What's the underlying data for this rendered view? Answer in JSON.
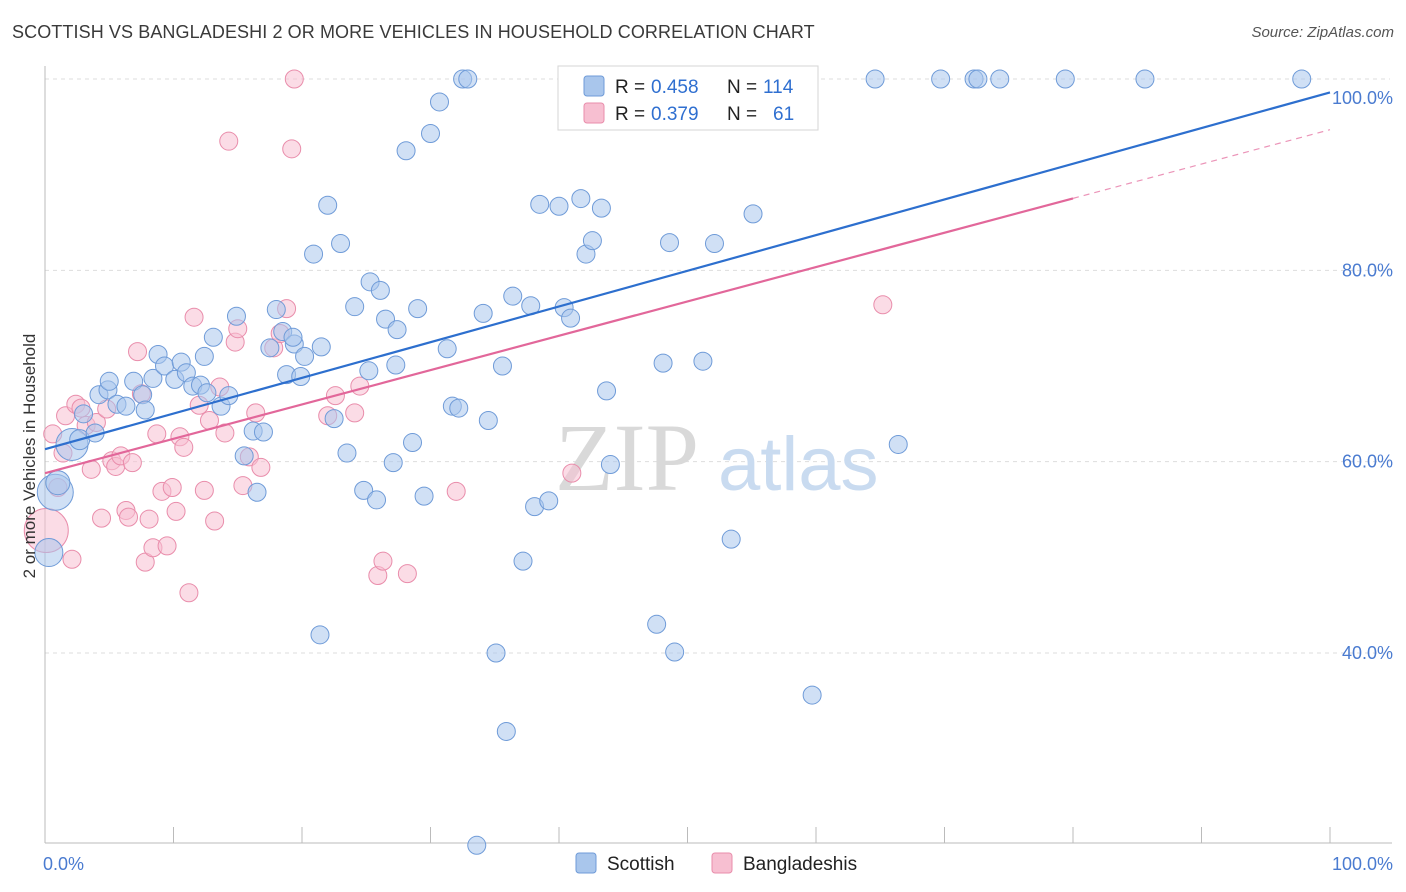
{
  "header": {
    "title": "SCOTTISH VS BANGLADESHI 2 OR MORE VEHICLES IN HOUSEHOLD CORRELATION CHART",
    "source": "Source: ZipAtlas.com"
  },
  "watermark": {
    "part1": "ZIP",
    "part2": "atlas"
  },
  "colors": {
    "scottish_fill": "#a9c6ec",
    "scottish_stroke": "#6f9bd8",
    "scottish_line": "#2d6fce",
    "bangladeshi_fill": "#f7bfd1",
    "bangladeshi_stroke": "#e98dab",
    "bangladeshi_line": "#e2679a",
    "tick_text": "#4a7bd0",
    "grid": "#dddddd"
  },
  "legend": {
    "rows": [
      {
        "r_label": "R =",
        "r_value": "0.458",
        "n_label": "N =",
        "n_value": "114"
      },
      {
        "r_label": "R =",
        "r_value": "0.379",
        "n_label": "N =",
        "n_value": "61"
      }
    ]
  },
  "bottom_legend": {
    "items": [
      "Scottish",
      "Bangladeshis"
    ]
  },
  "chart_data": {
    "type": "scatter",
    "title": "SCOTTISH VS BANGLADESHI 2 OR MORE VEHICLES IN HOUSEHOLD CORRELATION CHART",
    "xlabel": "",
    "ylabel": "2 or more Vehicles in Household",
    "xlim": [
      0,
      100
    ],
    "ylim": [
      18,
      102
    ],
    "x_tick_labels": [
      "0.0%",
      "100.0%"
    ],
    "y_ticks": [
      40,
      60,
      80,
      100
    ],
    "y_tick_labels": [
      "40.0%",
      "60.0%",
      "80.0%",
      "100.0%"
    ],
    "grid": true,
    "legend_position": "top-center",
    "series": [
      {
        "name": "Scottish",
        "r": 0.458,
        "n": 114,
        "trend": {
          "x": [
            0,
            100
          ],
          "y": [
            61.3,
            98.6
          ]
        },
        "points": [
          [
            0.3,
            50.5,
            14
          ],
          [
            0.8,
            56.8,
            18
          ],
          [
            1.0,
            57.8,
            12
          ],
          [
            2.1,
            61.8,
            16
          ],
          [
            2.7,
            62.3,
            10
          ],
          [
            3.0,
            65.0,
            9
          ],
          [
            3.9,
            63.0,
            9
          ],
          [
            4.2,
            67.0,
            9
          ],
          [
            4.9,
            67.5,
            9
          ],
          [
            5.0,
            68.4,
            9
          ],
          [
            5.6,
            66.0,
            9
          ],
          [
            6.3,
            65.8,
            9
          ],
          [
            6.9,
            68.4,
            9
          ],
          [
            7.6,
            67.0,
            9
          ],
          [
            7.8,
            65.4,
            9
          ],
          [
            8.4,
            68.7,
            9
          ],
          [
            8.8,
            71.2,
            9
          ],
          [
            9.3,
            70.0,
            9
          ],
          [
            10.1,
            68.6,
            9
          ],
          [
            10.6,
            70.4,
            9
          ],
          [
            11.0,
            69.3,
            9
          ],
          [
            11.5,
            67.9,
            9
          ],
          [
            12.1,
            68.0,
            9
          ],
          [
            12.4,
            71.0,
            9
          ],
          [
            12.6,
            67.2,
            9
          ],
          [
            13.1,
            73.0,
            9
          ],
          [
            13.7,
            65.8,
            9
          ],
          [
            14.3,
            66.9,
            9
          ],
          [
            14.9,
            75.2,
            9
          ],
          [
            15.5,
            60.6,
            9
          ],
          [
            16.2,
            63.2,
            9
          ],
          [
            16.5,
            56.8,
            9
          ],
          [
            17.0,
            63.1,
            9
          ],
          [
            17.5,
            71.9,
            9
          ],
          [
            18.0,
            75.9,
            9
          ],
          [
            18.5,
            73.6,
            9
          ],
          [
            18.8,
            69.1,
            9
          ],
          [
            19.4,
            72.3,
            9
          ],
          [
            19.9,
            68.9,
            9
          ],
          [
            20.2,
            71.0,
            9
          ],
          [
            20.9,
            81.7,
            9
          ],
          [
            21.5,
            72.0,
            9
          ],
          [
            22.0,
            86.8,
            9
          ],
          [
            22.5,
            64.5,
            9
          ],
          [
            23.0,
            82.8,
            9
          ],
          [
            23.5,
            60.9,
            9
          ],
          [
            24.1,
            76.2,
            9
          ],
          [
            24.8,
            57.0,
            9
          ],
          [
            25.3,
            78.8,
            9
          ],
          [
            25.8,
            56.0,
            9
          ],
          [
            26.1,
            77.9,
            9
          ],
          [
            26.5,
            74.9,
            9
          ],
          [
            27.1,
            59.9,
            9
          ],
          [
            27.4,
            73.8,
            9
          ],
          [
            28.1,
            92.5,
            9
          ],
          [
            28.6,
            62.0,
            9
          ],
          [
            29.0,
            76.0,
            9
          ],
          [
            29.5,
            56.4,
            9
          ],
          [
            30.0,
            94.3,
            9
          ],
          [
            30.7,
            97.6,
            9
          ],
          [
            31.3,
            71.8,
            9
          ],
          [
            31.7,
            65.8,
            9
          ],
          [
            32.2,
            65.6,
            9
          ],
          [
            32.5,
            100.0,
            9
          ],
          [
            32.9,
            100.0,
            9
          ],
          [
            33.6,
            19.9,
            9
          ],
          [
            34.1,
            75.5,
            9
          ],
          [
            34.5,
            64.3,
            9
          ],
          [
            35.1,
            40.0,
            9
          ],
          [
            35.6,
            70.0,
            9
          ],
          [
            35.9,
            31.8,
            9
          ],
          [
            36.4,
            77.3,
            9
          ],
          [
            37.2,
            49.6,
            9
          ],
          [
            37.8,
            76.3,
            9
          ],
          [
            38.1,
            55.3,
            9
          ],
          [
            38.5,
            86.9,
            9
          ],
          [
            39.2,
            55.9,
            9
          ],
          [
            40.0,
            86.7,
            9
          ],
          [
            40.4,
            76.1,
            9
          ],
          [
            40.9,
            75.0,
            9
          ],
          [
            41.7,
            87.5,
            9
          ],
          [
            42.1,
            81.7,
            9
          ],
          [
            42.6,
            83.1,
            9
          ],
          [
            43.3,
            86.5,
            9
          ],
          [
            43.7,
            67.4,
            9
          ],
          [
            44.0,
            59.7,
            9
          ],
          [
            44.6,
            100.0,
            9
          ],
          [
            47.1,
            95.8,
            9
          ],
          [
            47.6,
            43.0,
            9
          ],
          [
            48.1,
            70.3,
            9
          ],
          [
            48.6,
            82.9,
            9
          ],
          [
            49.0,
            40.1,
            9
          ],
          [
            50.0,
            100.0,
            9
          ],
          [
            51.2,
            70.5,
            9
          ],
          [
            52.1,
            82.8,
            9
          ],
          [
            53.4,
            51.9,
            9
          ],
          [
            55.1,
            85.9,
            9
          ],
          [
            57.2,
            100.0,
            9
          ],
          [
            58.0,
            100.0,
            9
          ],
          [
            59.1,
            100.0,
            9
          ],
          [
            59.7,
            35.6,
            9
          ],
          [
            64.6,
            100.0,
            9
          ],
          [
            66.4,
            61.8,
            9
          ],
          [
            69.7,
            100.0,
            9
          ],
          [
            72.3,
            100.0,
            9
          ],
          [
            72.6,
            100.0,
            9
          ],
          [
            74.3,
            100.0,
            9
          ],
          [
            79.4,
            100.0,
            9
          ],
          [
            85.6,
            100.0,
            9
          ],
          [
            97.8,
            100.0,
            9
          ],
          [
            21.4,
            41.9,
            9
          ],
          [
            27.3,
            70.1,
            9
          ],
          [
            19.3,
            73.0,
            9
          ],
          [
            25.2,
            69.5,
            9
          ]
        ]
      },
      {
        "name": "Bangladeshis",
        "r": 0.379,
        "n": 61,
        "trend": {
          "x": [
            0,
            100
          ],
          "y": [
            58.8,
            94.7
          ],
          "solid_until_x": 80
        },
        "points": [
          [
            0.1,
            52.8,
            22
          ],
          [
            0.6,
            62.9,
            9
          ],
          [
            1.0,
            57.3,
            9
          ],
          [
            1.4,
            60.9,
            9
          ],
          [
            1.6,
            64.8,
            9
          ],
          [
            2.1,
            49.8,
            9
          ],
          [
            2.4,
            66.0,
            9
          ],
          [
            2.8,
            65.6,
            9
          ],
          [
            3.2,
            63.8,
            9
          ],
          [
            3.6,
            59.2,
            9
          ],
          [
            4.0,
            64.1,
            9
          ],
          [
            4.4,
            54.1,
            9
          ],
          [
            4.8,
            65.5,
            9
          ],
          [
            5.2,
            60.1,
            9
          ],
          [
            5.5,
            59.5,
            9
          ],
          [
            5.9,
            60.6,
            9
          ],
          [
            6.3,
            54.9,
            9
          ],
          [
            6.5,
            54.2,
            9
          ],
          [
            6.8,
            59.9,
            9
          ],
          [
            7.2,
            71.5,
            9
          ],
          [
            7.5,
            67.1,
            9
          ],
          [
            7.8,
            49.5,
            9
          ],
          [
            8.1,
            54.0,
            9
          ],
          [
            8.4,
            51.0,
            9
          ],
          [
            8.7,
            62.9,
            9
          ],
          [
            9.1,
            56.9,
            9
          ],
          [
            9.5,
            51.2,
            9
          ],
          [
            9.9,
            57.3,
            9
          ],
          [
            10.2,
            54.8,
            9
          ],
          [
            10.5,
            62.6,
            9
          ],
          [
            10.8,
            61.5,
            9
          ],
          [
            11.2,
            46.3,
            9
          ],
          [
            11.6,
            75.1,
            9
          ],
          [
            12.0,
            65.9,
            9
          ],
          [
            12.4,
            57.0,
            9
          ],
          [
            12.8,
            64.3,
            9
          ],
          [
            13.2,
            53.8,
            9
          ],
          [
            13.6,
            67.8,
            9
          ],
          [
            14.0,
            63.0,
            9
          ],
          [
            14.3,
            93.5,
            9
          ],
          [
            14.8,
            72.5,
            9
          ],
          [
            15.0,
            73.9,
            9
          ],
          [
            15.4,
            57.5,
            9
          ],
          [
            15.9,
            60.5,
            9
          ],
          [
            16.4,
            65.1,
            9
          ],
          [
            16.8,
            59.4,
            9
          ],
          [
            17.8,
            71.9,
            9
          ],
          [
            18.3,
            73.4,
            9
          ],
          [
            18.8,
            76.0,
            9
          ],
          [
            19.2,
            92.7,
            9
          ],
          [
            19.4,
            100.0,
            9
          ],
          [
            22.0,
            64.8,
            9
          ],
          [
            22.6,
            66.9,
            9
          ],
          [
            24.1,
            65.1,
            9
          ],
          [
            24.5,
            67.9,
            9
          ],
          [
            25.9,
            48.1,
            9
          ],
          [
            26.3,
            49.6,
            9
          ],
          [
            28.2,
            48.3,
            9
          ],
          [
            32.0,
            56.9,
            9
          ],
          [
            41.0,
            58.8,
            9
          ],
          [
            65.2,
            76.4,
            9
          ]
        ]
      }
    ]
  }
}
